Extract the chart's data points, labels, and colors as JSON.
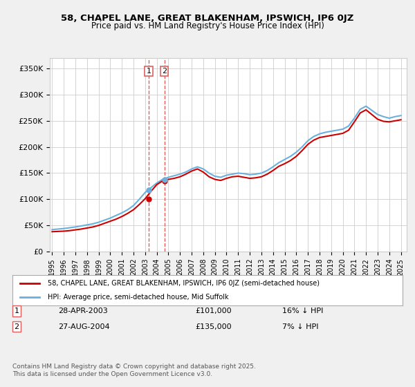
{
  "title": "58, CHAPEL LANE, GREAT BLAKENHAM, IPSWICH, IP6 0JZ",
  "subtitle": "Price paid vs. HM Land Registry's House Price Index (HPI)",
  "legend_line1": "58, CHAPEL LANE, GREAT BLAKENHAM, IPSWICH, IP6 0JZ (semi-detached house)",
  "legend_line2": "HPI: Average price, semi-detached house, Mid Suffolk",
  "footnote": "Contains HM Land Registry data © Crown copyright and database right 2025.\nThis data is licensed under the Open Government Licence v3.0.",
  "transaction1_label": "1",
  "transaction1_date": "28-APR-2003",
  "transaction1_price": "£101,000",
  "transaction1_hpi": "16% ↓ HPI",
  "transaction2_label": "2",
  "transaction2_date": "27-AUG-2004",
  "transaction2_price": "£135,000",
  "transaction2_hpi": "7% ↓ HPI",
  "vline1_x": 2003.32,
  "vline2_x": 2004.65,
  "ylim": [
    0,
    370000
  ],
  "yticks": [
    0,
    50000,
    100000,
    150000,
    200000,
    250000,
    300000,
    350000
  ],
  "hpi_color": "#6ab0de",
  "price_color": "#cc0000",
  "vline_color": "#e06060",
  "background_color": "#f0f0f0",
  "plot_bg_color": "#ffffff",
  "hpi_data_x": [
    1995,
    1995.5,
    1996,
    1996.5,
    1997,
    1997.5,
    1998,
    1998.5,
    1999,
    1999.5,
    2000,
    2000.5,
    2001,
    2001.5,
    2002,
    2002.5,
    2003,
    2003.5,
    2004,
    2004.5,
    2005,
    2005.5,
    2006,
    2006.5,
    2007,
    2007.5,
    2008,
    2008.5,
    2009,
    2009.5,
    2010,
    2010.5,
    2011,
    2011.5,
    2012,
    2012.5,
    2013,
    2013.5,
    2014,
    2014.5,
    2015,
    2015.5,
    2016,
    2016.5,
    2017,
    2017.5,
    2018,
    2018.5,
    2019,
    2019.5,
    2020,
    2020.5,
    2021,
    2021.5,
    2022,
    2022.5,
    2023,
    2023.5,
    2024,
    2024.5,
    2025
  ],
  "hpi_data_y": [
    42000,
    43000,
    44000,
    45500,
    47000,
    49000,
    51000,
    53000,
    56000,
    60000,
    64000,
    69000,
    74000,
    80000,
    88000,
    100000,
    113000,
    122000,
    131000,
    138000,
    142000,
    145000,
    148000,
    152000,
    158000,
    162000,
    158000,
    150000,
    144000,
    142000,
    146000,
    148000,
    150000,
    149000,
    147000,
    148000,
    150000,
    155000,
    162000,
    170000,
    176000,
    182000,
    190000,
    200000,
    212000,
    220000,
    225000,
    228000,
    230000,
    232000,
    234000,
    240000,
    255000,
    272000,
    278000,
    270000,
    262000,
    258000,
    255000,
    258000,
    260000
  ],
  "price_data_x": [
    1995,
    1995.5,
    1996,
    1996.5,
    1997,
    1997.5,
    1998,
    1998.5,
    1999,
    1999.5,
    2000,
    2000.5,
    2001,
    2001.5,
    2002,
    2002.5,
    2003,
    2003.5,
    2004,
    2004.5,
    2005,
    2005.5,
    2006,
    2006.5,
    2007,
    2007.5,
    2008,
    2008.5,
    2009,
    2009.5,
    2010,
    2010.5,
    2011,
    2011.5,
    2012,
    2012.5,
    2013,
    2013.5,
    2014,
    2014.5,
    2015,
    2015.5,
    2016,
    2016.5,
    2017,
    2017.5,
    2018,
    2018.5,
    2019,
    2019.5,
    2020,
    2020.5,
    2021,
    2021.5,
    2022,
    2022.5,
    2023,
    2023.5,
    2024,
    2024.5,
    2025
  ],
  "price_data_y": [
    38000,
    38500,
    39000,
    40000,
    41500,
    43000,
    45000,
    47000,
    50000,
    54000,
    58000,
    62000,
    67000,
    73000,
    80000,
    90000,
    101000,
    115000,
    128000,
    135000,
    138000,
    140000,
    143000,
    148000,
    154000,
    158000,
    152000,
    143000,
    138000,
    136000,
    140000,
    143000,
    144000,
    142000,
    140000,
    141000,
    143000,
    148000,
    155000,
    163000,
    168000,
    174000,
    182000,
    193000,
    205000,
    213000,
    218000,
    220000,
    222000,
    224000,
    226000,
    232000,
    248000,
    265000,
    271000,
    262000,
    253000,
    249000,
    248000,
    250000,
    252000
  ],
  "xticks": [
    1995,
    1996,
    1997,
    1998,
    1999,
    2000,
    2001,
    2002,
    2003,
    2004,
    2005,
    2006,
    2007,
    2008,
    2009,
    2010,
    2011,
    2012,
    2013,
    2014,
    2015,
    2016,
    2017,
    2018,
    2019,
    2020,
    2021,
    2022,
    2023,
    2024,
    2025
  ]
}
